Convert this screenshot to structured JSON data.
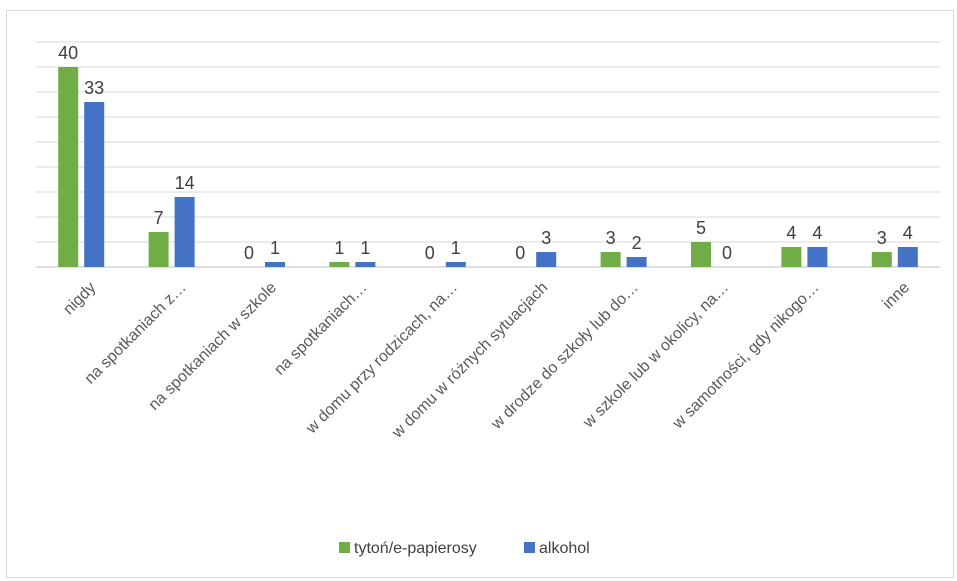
{
  "chart_data": {
    "type": "bar",
    "categories": [
      "nigdy",
      "na spotkaniach z…",
      "na spotkaniach w szkole",
      "na spotkaniach…",
      "w domu przy rodzicach, na…",
      "w domu w różnych sytuacjach",
      "w drodze do szkoły lub do…",
      "w szkole lub w okolicy, na…",
      "w samotności, gdy nikogo…",
      "inne"
    ],
    "series": [
      {
        "name": "tytoń/e-papierosy",
        "color": "#70ad47",
        "values": [
          40,
          7,
          0,
          1,
          0,
          0,
          3,
          5,
          4,
          3
        ]
      },
      {
        "name": "alkohol",
        "color": "#4472c4",
        "values": [
          33,
          14,
          1,
          1,
          1,
          3,
          2,
          0,
          4,
          4
        ]
      }
    ],
    "ylim": [
      0,
      45
    ],
    "grid": true,
    "legend_position": "bottom"
  }
}
